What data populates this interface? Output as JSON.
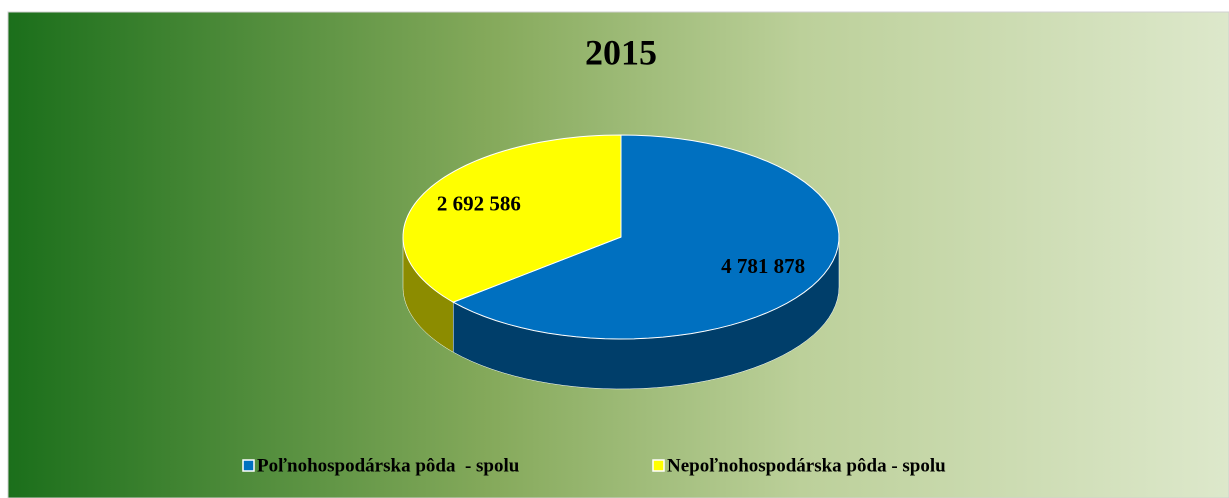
{
  "chart_data": {
    "type": "pie",
    "title": "2015",
    "categories": [
      "Poľnohospodárska pôda  - spolu",
      "Nepoľnohospodárska pôda - spolu"
    ],
    "values": [
      4781878,
      2692586
    ],
    "value_labels": [
      "4 781 878",
      "2 692 586"
    ],
    "colors": [
      "#0070c0",
      "#ffff00"
    ],
    "legend": "bottom"
  }
}
